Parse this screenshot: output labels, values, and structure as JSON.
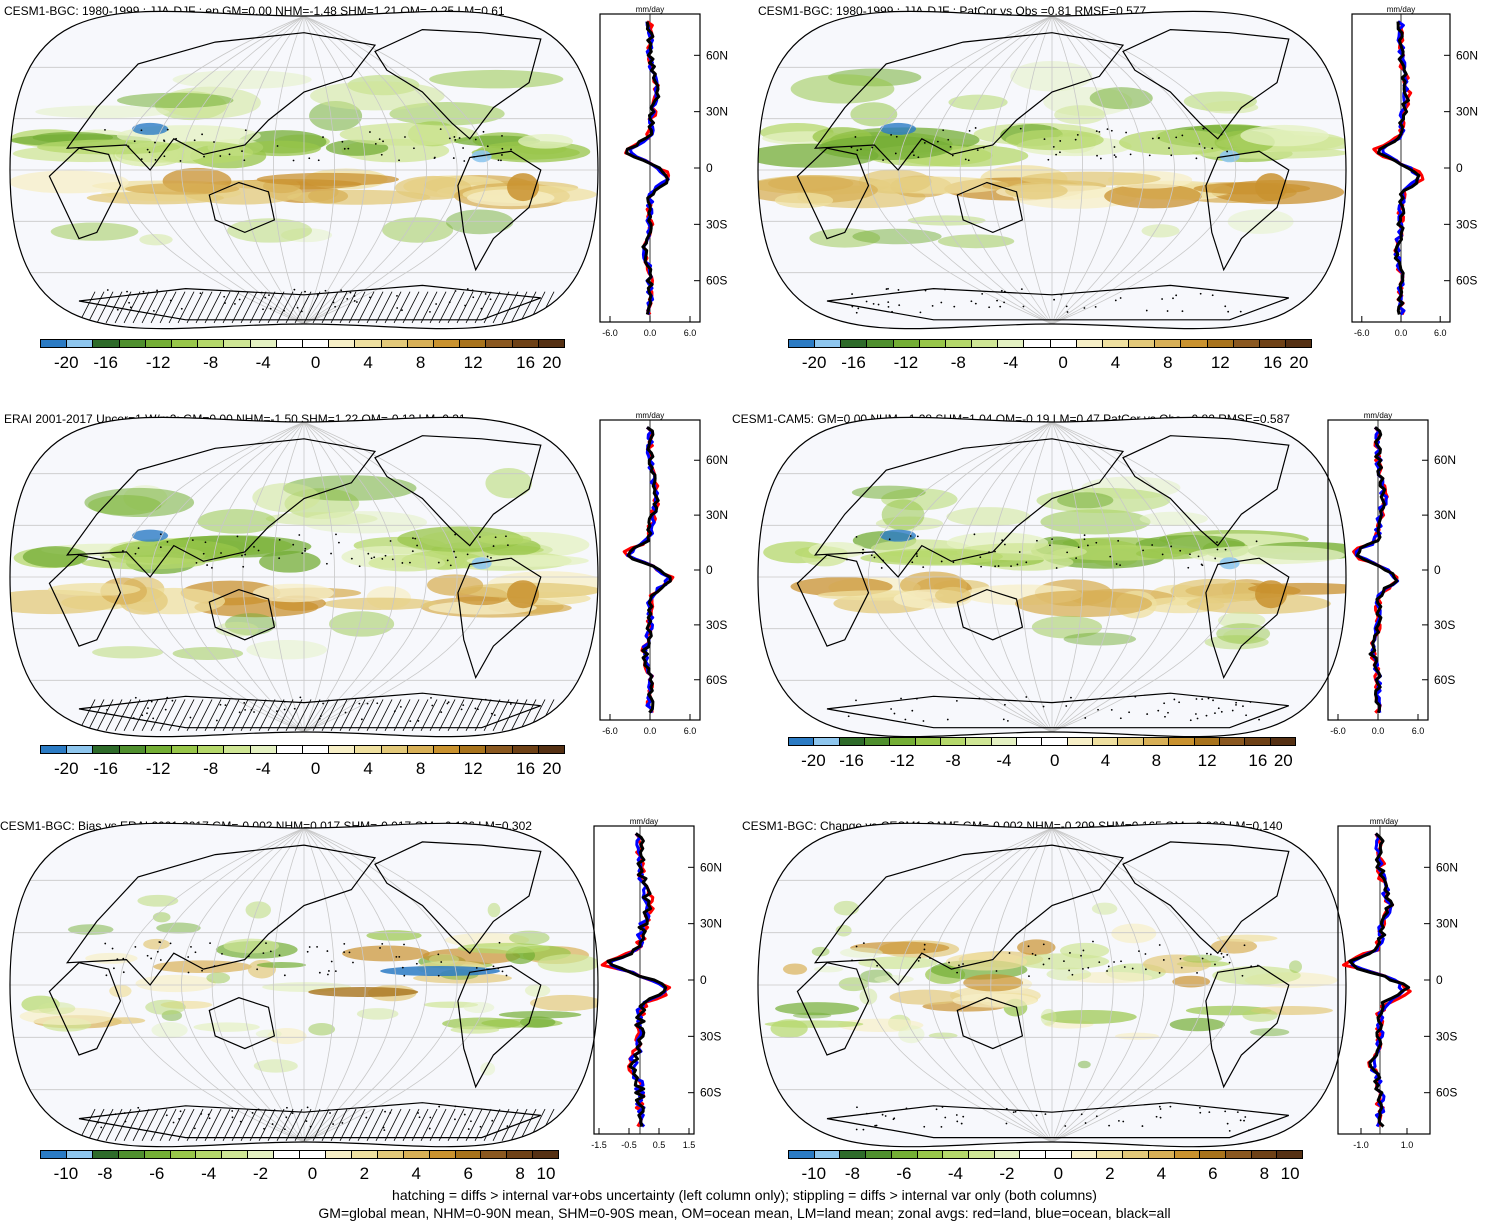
{
  "panels": [
    {
      "title": "CESM1-BGC: 1980-1999 : JJA-DJF : ep GM=0.00 NHM=-1.48 SHM=1.21 OM=-0.25 LM=0.61",
      "units": "mm/day",
      "zonal_xticks": [
        "-6.0",
        "0.0",
        "6.0"
      ],
      "lat_ticks": [
        "60N",
        "30N",
        "0",
        "30S",
        "60S"
      ],
      "colorbar": [
        "-20",
        "-16",
        "-12",
        "-8",
        "-4",
        "0",
        "4",
        "8",
        "12",
        "16",
        "20"
      ],
      "hatching": true
    },
    {
      "title": "CESM1-BGC: 1980-1999 : JJA-DJF : PatCor vs Obs =0.81 RMSE=0.577",
      "units": "mm/day",
      "zonal_xticks": [
        "-6.0",
        "0.0",
        "6.0"
      ],
      "lat_ticks": [
        "60N",
        "30N",
        "0",
        "30S",
        "60S"
      ],
      "colorbar": [
        "-20",
        "-16",
        "-12",
        "-8",
        "-4",
        "0",
        "4",
        "8",
        "12",
        "16",
        "20"
      ],
      "hatching": false
    },
    {
      "title": "ERAI 2001-2017 Uncer=1 W/m2: GM=0.00 NHM=-1.50 SHM=1.22 OM=-0.12 LM=0.31",
      "units": "mm/day",
      "zonal_xticks": [
        "-6.0",
        "0.0",
        "6.0"
      ],
      "lat_ticks": [
        "60N",
        "30N",
        "0",
        "30S",
        "60S"
      ],
      "colorbar": [
        "-20",
        "-16",
        "-12",
        "-8",
        "-4",
        "0",
        "4",
        "8",
        "12",
        "16",
        "20"
      ],
      "hatching": true
    },
    {
      "title": "CESM1-CAM5: GM=0.00 NHM=-1.28 SHM=1.04 OM=-0.19 LM=0.47 PatCor vs Obs =0.82 RMSE=0.587",
      "units": "mm/day",
      "zonal_xticks": [
        "-6.0",
        "0.0",
        "6.0"
      ],
      "lat_ticks": [
        "60N",
        "30N",
        "0",
        "30S",
        "60S"
      ],
      "colorbar": [
        "-20",
        "-16",
        "-12",
        "-8",
        "-4",
        "0",
        "4",
        "8",
        "12",
        "16",
        "20"
      ],
      "hatching": false
    },
    {
      "title": "CESM1-BGC: Bias vs ERAI 2001-2017 GM=-0.002 NHM=0.017 SHM=-0.017 OM=-0.126 LM=0.302",
      "units": "mm/day",
      "zonal_xticks": [
        "-1.5",
        "-0.5",
        "0.5",
        "1.5"
      ],
      "lat_ticks": [
        "60N",
        "30N",
        "0",
        "30S",
        "60S"
      ],
      "colorbar": [
        "-10",
        "-8",
        "-6",
        "-4",
        "-2",
        "0",
        "2",
        "4",
        "6",
        "8",
        "10"
      ],
      "hatching": true
    },
    {
      "title": "CESM1-BGC: Change vs CESM1-CAM5 GM=-0.002 NHM=-0.209 SHM=0.165 OM=-0.060 LM=0.140",
      "units": "mm/day",
      "zonal_xticks": [
        "-1.0",
        "1.0"
      ],
      "lat_ticks": [
        "60N",
        "30N",
        "0",
        "30S",
        "60S"
      ],
      "colorbar": [
        "-10",
        "-8",
        "-6",
        "-4",
        "-2",
        "0",
        "2",
        "4",
        "6",
        "8",
        "10"
      ],
      "hatching": false
    }
  ],
  "colors": {
    "palette": [
      "#2b7bc4",
      "#8ec6ee",
      "#2e6b2a",
      "#4f8f2e",
      "#74ae35",
      "#98c64a",
      "#b5d86b",
      "#cfe695",
      "#e4f1c2",
      "#ffffff",
      "#ffffff",
      "#f7efc7",
      "#efe0a0",
      "#e3c97a",
      "#d8b057",
      "#c9922f",
      "#a8731c",
      "#8a5820",
      "#6e4116",
      "#553013"
    ],
    "land": "#000000",
    "zonal_land": "#ff0000",
    "zonal_ocean": "#0000ff",
    "zonal_all": "#000000"
  },
  "footer": {
    "line1": "hatching = diffs > internal var+obs uncertainty (left column only); stippling = diffs > internal var only (both columns)",
    "line2": "GM=global mean, NHM=0-90N mean, SHM=0-90S mean, OM=ocean mean, LM=land mean; zonal avgs: red=land, blue=ocean, black=all"
  }
}
